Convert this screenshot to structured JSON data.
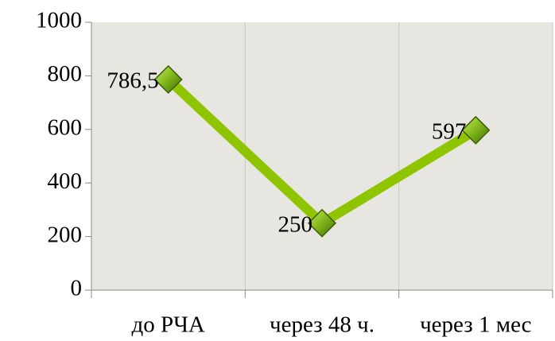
{
  "chart_data": {
    "type": "line",
    "categories": [
      "до РЧА",
      "через 48 ч.",
      "через 1 мес"
    ],
    "values": [
      786.5,
      250,
      597
    ],
    "value_labels": [
      "786,5",
      "250",
      "597"
    ],
    "color": "#8fc400",
    "ylim": [
      0,
      1000
    ],
    "yticks": [
      0,
      200,
      400,
      600,
      800,
      1000
    ]
  }
}
